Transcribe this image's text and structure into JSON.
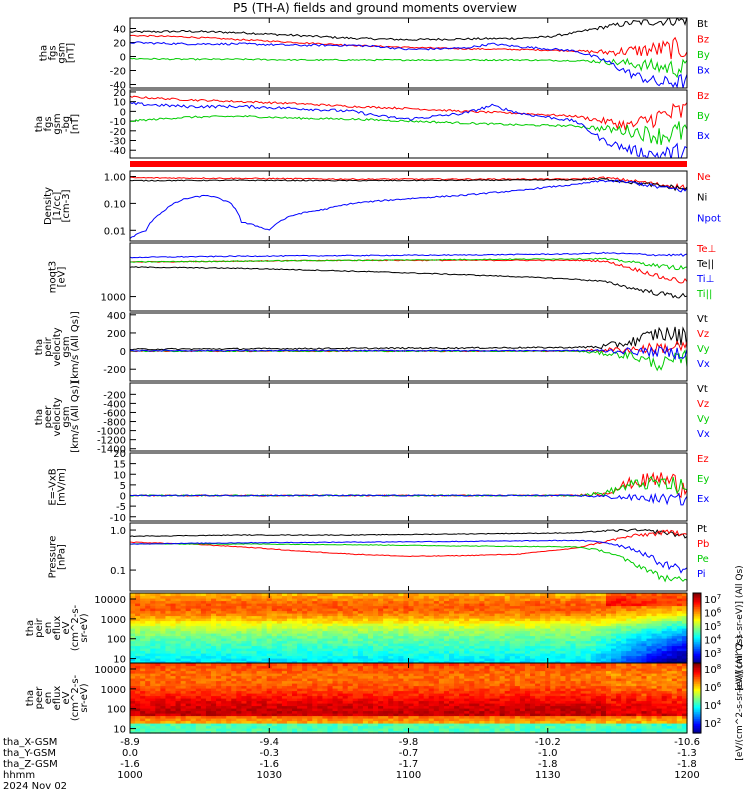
{
  "title": "P5 (TH-A) fields and ground moments overview",
  "date_label": "2024 Nov 02",
  "footer": {
    "row_labels": [
      "tha_X-GSM",
      "tha_Y-GSM",
      "tha_Z-GSM",
      "hhmm"
    ],
    "ticks": [
      {
        "values": [
          "-8.9",
          "0.0",
          "-1.6",
          "1000"
        ]
      },
      {
        "values": [
          "-9.4",
          "-0.3",
          "-1.6",
          "1030"
        ]
      },
      {
        "values": [
          "-9.8",
          "-0.7",
          "-1.7",
          "1100"
        ]
      },
      {
        "values": [
          "-10.2",
          "-1.0",
          "-1.8",
          "1130"
        ]
      },
      {
        "values": [
          "-10.6",
          "-1.3",
          "-1.8",
          "1200"
        ]
      }
    ]
  },
  "colors": {
    "black": "#000000",
    "red": "#ff0000",
    "green": "#00cc00",
    "blue": "#0000ff"
  },
  "chart_data": [
    {
      "type": "line",
      "ylabel": [
        "tha",
        "fgs",
        "gsm",
        "[nT]"
      ],
      "ylim": [
        -45,
        55
      ],
      "ticks": [
        "40",
        "20",
        "0",
        "-20",
        "-40"
      ],
      "tick_values": [
        40,
        20,
        0,
        -20,
        -40
      ],
      "series": [
        {
          "name": "Bt",
          "color": "black",
          "x": [
            0,
            0.1,
            0.2,
            0.3,
            0.4,
            0.5,
            0.6,
            0.7,
            0.75,
            0.8,
            0.85,
            0.9,
            0.95,
            1.0
          ],
          "values": [
            35,
            36,
            34,
            30,
            26,
            24,
            25,
            26,
            28,
            34,
            42,
            48,
            50,
            52
          ],
          "noise": 1.5,
          "noise_end": 8
        },
        {
          "name": "Bz",
          "color": "red",
          "x": [
            0,
            0.1,
            0.2,
            0.3,
            0.4,
            0.5,
            0.6,
            0.7,
            0.8,
            0.85,
            0.9,
            0.95,
            1.0
          ],
          "values": [
            30,
            28,
            24,
            20,
            16,
            13,
            11,
            10,
            8,
            6,
            8,
            10,
            12
          ],
          "noise": 1.0,
          "noise_end": 18
        },
        {
          "name": "By",
          "color": "green",
          "x": [
            0,
            0.1,
            0.2,
            0.3,
            0.4,
            0.5,
            0.6,
            0.7,
            0.8,
            0.85,
            0.9,
            0.95,
            1.0
          ],
          "values": [
            -3,
            -4,
            -4,
            -5,
            -5,
            -5,
            -5,
            -5,
            -6,
            -7,
            -10,
            -15,
            -18
          ],
          "noise": 1.0,
          "noise_end": 15
        },
        {
          "name": "Bx",
          "color": "blue",
          "x": [
            0,
            0.1,
            0.2,
            0.3,
            0.4,
            0.45,
            0.5,
            0.6,
            0.65,
            0.7,
            0.8,
            0.85,
            0.9,
            0.95,
            1.0
          ],
          "values": [
            20,
            18,
            18,
            16,
            16,
            14,
            10,
            12,
            18,
            14,
            8,
            -5,
            -25,
            -38,
            -35
          ],
          "noise": 1.5,
          "noise_end": 12
        }
      ]
    },
    {
      "type": "line",
      "ylabel": [
        "tha",
        "fgs",
        "gsm",
        "-bg",
        "[nT]"
      ],
      "ylim": [
        -48,
        22
      ],
      "ticks": [
        "20",
        "10",
        "0",
        "-10",
        "-20",
        "-30",
        "-40"
      ],
      "tick_values": [
        20,
        10,
        0,
        -10,
        -20,
        -30,
        -40
      ],
      "series": [
        {
          "name": "Bz",
          "color": "red",
          "x": [
            0,
            0.1,
            0.2,
            0.3,
            0.4,
            0.5,
            0.6,
            0.7,
            0.8,
            0.85,
            0.9,
            0.95,
            1.0
          ],
          "values": [
            15,
            12,
            10,
            8,
            5,
            3,
            0,
            -2,
            -5,
            -10,
            -15,
            -5,
            0
          ],
          "noise": 1.0,
          "noise_end": 14
        },
        {
          "name": "By",
          "color": "green",
          "x": [
            0,
            0.1,
            0.2,
            0.3,
            0.4,
            0.5,
            0.6,
            0.7,
            0.8,
            0.85,
            0.9,
            0.95,
            1.0
          ],
          "values": [
            -10,
            -6,
            -5,
            -7,
            -8,
            -10,
            -12,
            -14,
            -15,
            -18,
            -20,
            -25,
            -20
          ],
          "noise": 1.0,
          "noise_end": 14
        },
        {
          "name": "Bx",
          "color": "blue",
          "x": [
            0,
            0.1,
            0.2,
            0.3,
            0.4,
            0.45,
            0.5,
            0.6,
            0.65,
            0.7,
            0.8,
            0.85,
            0.9,
            0.95,
            1.0
          ],
          "values": [
            8,
            5,
            5,
            3,
            0,
            -5,
            -8,
            -2,
            6,
            -2,
            -10,
            -30,
            -40,
            -45,
            -40
          ],
          "noise": 1.5,
          "noise_end": 10
        }
      ]
    },
    {
      "type": "line",
      "scale": "log",
      "ylabel": [
        "Density",
        "[1/cc]",
        "[cm-3]"
      ],
      "ylim": [
        0.004,
        1.6
      ],
      "ticks": [
        "1.00",
        "0.10",
        "0.01"
      ],
      "tick_values": [
        1.0,
        0.1,
        0.01
      ],
      "series": [
        {
          "name": "Ne",
          "color": "red",
          "x": [
            0,
            0.2,
            0.4,
            0.6,
            0.8,
            0.85,
            0.9,
            0.95,
            1.0
          ],
          "values": [
            0.9,
            0.85,
            0.8,
            0.8,
            0.8,
            0.9,
            0.7,
            0.5,
            0.4
          ],
          "noise": 0.05,
          "noise_end": 0.25
        },
        {
          "name": "Ni",
          "color": "black",
          "x": [
            0,
            0.2,
            0.4,
            0.6,
            0.8,
            0.85,
            0.9,
            0.95,
            1.0
          ],
          "values": [
            0.7,
            0.72,
            0.7,
            0.72,
            0.75,
            0.8,
            0.6,
            0.45,
            0.35
          ],
          "noise": 0.04,
          "noise_end": 0.25
        },
        {
          "name": "Npot",
          "color": "blue",
          "x": [
            0,
            0.03,
            0.06,
            0.1,
            0.14,
            0.18,
            0.2,
            0.25,
            0.3,
            0.35,
            0.4,
            0.5,
            0.6,
            0.7,
            0.75,
            0.8,
            0.85,
            0.9,
            0.95,
            1.0
          ],
          "values": [
            0.005,
            0.01,
            0.05,
            0.15,
            0.2,
            0.1,
            0.02,
            0.01,
            0.04,
            0.06,
            0.1,
            0.15,
            0.2,
            0.3,
            0.4,
            0.5,
            0.7,
            0.6,
            0.4,
            0.3
          ],
          "noise": 0.06,
          "noise_end": 0.25
        }
      ]
    },
    {
      "type": "line",
      "scale": "log",
      "ylabel": [
        "moqt3",
        "[eV]"
      ],
      "ylim": [
        400,
        30000
      ],
      "ticks": [
        "1000"
      ],
      "tick_values": [
        1000
      ],
      "series": [
        {
          "name": "Te⊥",
          "color": "red",
          "x": [
            0,
            0.2,
            0.4,
            0.6,
            0.8,
            0.85,
            0.9,
            0.95,
            1.0
          ],
          "values": [
            9000,
            9500,
            10000,
            10000,
            10000,
            9500,
            6000,
            3500,
            2500
          ],
          "noise": 0.03,
          "noise_end": 0.2
        },
        {
          "name": "Te||",
          "color": "black",
          "x": [
            0,
            0.2,
            0.4,
            0.6,
            0.8,
            0.85,
            0.9,
            0.95,
            1.0
          ],
          "values": [
            6500,
            6000,
            5000,
            4000,
            3000,
            2600,
            1700,
            1200,
            1000
          ],
          "noise": 0.03,
          "noise_end": 0.2
        },
        {
          "name": "Ti⊥",
          "color": "blue",
          "x": [
            0,
            0.2,
            0.4,
            0.6,
            0.8,
            0.85,
            0.9,
            0.95,
            1.0
          ],
          "values": [
            12000,
            13000,
            13500,
            14000,
            15000,
            16000,
            15000,
            14000,
            14000
          ],
          "noise": 0.03,
          "noise_end": 0.08
        },
        {
          "name": "Ti||",
          "color": "green",
          "x": [
            0,
            0.2,
            0.4,
            0.6,
            0.8,
            0.85,
            0.9,
            0.95,
            1.0
          ],
          "values": [
            9000,
            9500,
            10000,
            10500,
            11000,
            11000,
            9000,
            7000,
            6000
          ],
          "noise": 0.03,
          "noise_end": 0.15
        }
      ]
    },
    {
      "type": "line",
      "ylabel": [
        "tha",
        "peir",
        "velocity",
        "gsm",
        "[km/s (All Qs)]"
      ],
      "ylim": [
        -330,
        420
      ],
      "ticks": [
        "400",
        "200",
        "0",
        "-200"
      ],
      "tick_values": [
        400,
        200,
        0,
        -200
      ],
      "series": [
        {
          "name": "Vt",
          "color": "black",
          "x": [
            0,
            0.2,
            0.4,
            0.6,
            0.8,
            0.85,
            0.9,
            0.95,
            1.0
          ],
          "values": [
            20,
            25,
            30,
            35,
            40,
            50,
            100,
            200,
            150
          ],
          "noise": 8,
          "noise_end": 120
        },
        {
          "name": "Vz",
          "color": "red",
          "x": [
            0,
            0.2,
            0.4,
            0.6,
            0.8,
            0.9,
            1.0
          ],
          "values": [
            0,
            0,
            0,
            0,
            0,
            20,
            50
          ],
          "noise": 6,
          "noise_end": 90
        },
        {
          "name": "Vy",
          "color": "green",
          "x": [
            0,
            0.2,
            0.4,
            0.6,
            0.8,
            0.9,
            0.95,
            1.0
          ],
          "values": [
            0,
            0,
            0,
            0,
            0,
            -50,
            -150,
            -80
          ],
          "noise": 6,
          "noise_end": 100
        },
        {
          "name": "Vx",
          "color": "blue",
          "x": [
            0,
            0.2,
            0.4,
            0.6,
            0.8,
            0.9,
            1.0
          ],
          "values": [
            5,
            5,
            5,
            5,
            5,
            0,
            -20
          ],
          "noise": 6,
          "noise_end": 80
        }
      ]
    },
    {
      "type": "line",
      "ylabel": [
        "tha",
        "peer",
        "velocity",
        "gsm",
        "[km/s (All Qs)]"
      ],
      "ylim": [
        -1450,
        50
      ],
      "ticks": [
        "-200",
        "-400",
        "-600",
        "-800",
        "-1000",
        "-1200",
        "-1400"
      ],
      "tick_values": [
        -200,
        -400,
        -600,
        -800,
        -1000,
        -1200,
        -1400
      ],
      "series": [
        {
          "name": "Vt",
          "color": "black",
          "x": [],
          "values": []
        },
        {
          "name": "Vz",
          "color": "red",
          "x": [],
          "values": []
        },
        {
          "name": "Vy",
          "color": "green",
          "x": [],
          "values": []
        },
        {
          "name": "Vx",
          "color": "blue",
          "x": [],
          "values": []
        }
      ]
    },
    {
      "type": "line",
      "ylabel": [
        "E=-VxB",
        "[mV/m]"
      ],
      "ylim": [
        -12,
        20
      ],
      "ticks": [
        "20",
        "15",
        "10",
        "5",
        "0",
        "-5",
        "-10"
      ],
      "tick_values": [
        20,
        15,
        10,
        5,
        0,
        -5,
        -10
      ],
      "series": [
        {
          "name": "Ez",
          "color": "red",
          "x": [
            0,
            0.2,
            0.4,
            0.6,
            0.8,
            0.85,
            0.9,
            0.95,
            1.0
          ],
          "values": [
            0,
            0,
            0,
            0,
            0,
            1,
            6,
            8,
            4
          ],
          "noise": 0.3,
          "noise_end": 6
        },
        {
          "name": "Ey",
          "color": "green",
          "x": [
            0,
            0.2,
            0.4,
            0.6,
            0.8,
            0.85,
            0.9,
            0.95,
            1.0
          ],
          "values": [
            0,
            0,
            0,
            0,
            0,
            1,
            5,
            6,
            3
          ],
          "noise": 0.3,
          "noise_end": 5
        },
        {
          "name": "Ex",
          "color": "blue",
          "x": [
            0,
            0.2,
            0.4,
            0.6,
            0.8,
            0.9,
            1.0
          ],
          "values": [
            0,
            0,
            0,
            0,
            0,
            -1,
            -2
          ],
          "noise": 0.3,
          "noise_end": 3
        }
      ]
    },
    {
      "type": "line",
      "scale": "log",
      "ylabel": [
        "Pressure",
        "[nPa]"
      ],
      "ylim": [
        0.03,
        1.5
      ],
      "ticks": [
        "1.0",
        "0.1"
      ],
      "tick_values": [
        1.0,
        0.1
      ],
      "series": [
        {
          "name": "Pt",
          "color": "black",
          "x": [
            0,
            0.2,
            0.4,
            0.6,
            0.8,
            0.85,
            0.9,
            0.95,
            1.0
          ],
          "values": [
            0.7,
            0.75,
            0.75,
            0.8,
            0.85,
            0.95,
            1.0,
            0.9,
            0.7
          ],
          "noise": 0.02,
          "noise_end": 0.15
        },
        {
          "name": "Pb",
          "color": "red",
          "x": [
            0,
            0.1,
            0.2,
            0.3,
            0.4,
            0.5,
            0.6,
            0.7,
            0.8,
            0.85,
            0.9,
            0.95,
            1.0
          ],
          "values": [
            0.5,
            0.45,
            0.38,
            0.3,
            0.25,
            0.22,
            0.23,
            0.25,
            0.35,
            0.5,
            0.7,
            0.85,
            0.9
          ],
          "noise": 0.02,
          "noise_end": 0.2
        },
        {
          "name": "Pe",
          "color": "green",
          "x": [
            0,
            0.2,
            0.4,
            0.6,
            0.8,
            0.85,
            0.9,
            0.95,
            1.0
          ],
          "values": [
            0.45,
            0.45,
            0.43,
            0.4,
            0.38,
            0.3,
            0.15,
            0.07,
            0.05
          ],
          "noise": 0.02,
          "noise_end": 0.25
        },
        {
          "name": "Pi",
          "color": "blue",
          "x": [
            0,
            0.2,
            0.4,
            0.6,
            0.8,
            0.85,
            0.9,
            0.95,
            1.0
          ],
          "values": [
            0.45,
            0.48,
            0.5,
            0.52,
            0.55,
            0.5,
            0.35,
            0.15,
            0.1
          ],
          "noise": 0.02,
          "noise_end": 0.25
        }
      ]
    },
    {
      "type": "heatmap",
      "ylabel": [
        "tha",
        "peir",
        "en",
        "eflux",
        "eV",
        "(cm^2-s-",
        "sr-eV)"
      ],
      "ticks": [
        "10000",
        "1000",
        "100",
        "10"
      ],
      "colorbar_label": "[eV/(cm^2-s-sr-eV)] (All Qs)",
      "colorbar_ticks": [
        "10^7",
        "10^6",
        "10^5",
        "10^4",
        "10^3"
      ]
    },
    {
      "type": "heatmap",
      "ylabel": [
        "tha",
        "peer",
        "en",
        "eflux",
        "eV",
        "(cm^2-s-",
        "sr-eV)"
      ],
      "ticks": [
        "10000",
        "1000",
        "100",
        "10"
      ],
      "colorbar_label": "[eV/(cm^2-s-sr-eV)] (All Qs)",
      "colorbar_ticks": [
        "10^8",
        "10^6",
        "10^4",
        "10^2"
      ]
    }
  ]
}
